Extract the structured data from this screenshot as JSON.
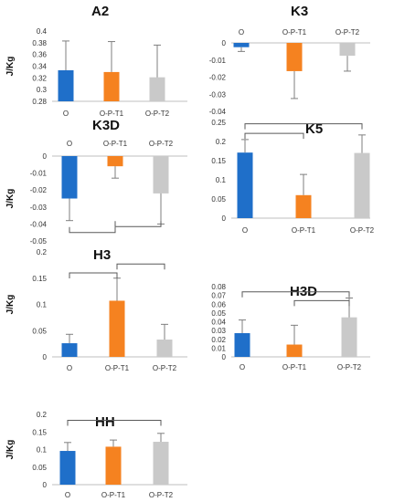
{
  "colors": {
    "O": "#1F6FC9",
    "O-P-T1": "#F58220",
    "O-P-T2": "#C9C9C9",
    "axis": "#BFBFBF",
    "error": "#7F7F7F",
    "bracket": "#595959"
  },
  "chart_data": [
    {
      "id": "A2",
      "type": "bar",
      "title": "A2",
      "ylabel": "J/Kg",
      "categories": [
        "O",
        "O-P-T1",
        "O-P-T2"
      ],
      "values": [
        0.333,
        0.33,
        0.321
      ],
      "errors": [
        0.05,
        0.052,
        0.055
      ],
      "ylim": [
        0.28,
        0.4
      ],
      "yticks": [
        0.28,
        0.3,
        0.32,
        0.34,
        0.36,
        0.38,
        0.4
      ],
      "ytick_labels": [
        "0.28",
        "0.3",
        "0.32",
        "0.34",
        "0.36",
        "0.38",
        "0.4"
      ],
      "brackets": []
    },
    {
      "id": "K3",
      "type": "bar",
      "title": "K3",
      "ylabel": "",
      "categories": [
        "O",
        "O-P-T1",
        "O-P-T2"
      ],
      "values": [
        -0.0025,
        -0.0165,
        -0.0075
      ],
      "errors": [
        0.0025,
        0.016,
        0.009
      ],
      "ylim": [
        -0.04,
        0
      ],
      "yticks": [
        0,
        -0.01,
        -0.02,
        -0.03,
        -0.04
      ],
      "ytick_labels": [
        "0",
        "-0.01",
        "-0.02",
        "-0.03",
        "-0.04"
      ],
      "brackets": []
    },
    {
      "id": "K3D",
      "type": "bar",
      "title": "K3D",
      "ylabel": "J/Kg",
      "categories": [
        "O",
        "O-P-T1",
        "O-P-T2"
      ],
      "values": [
        -0.025,
        -0.006,
        -0.022
      ],
      "errors": [
        0.013,
        0.007,
        0.018
      ],
      "ylim": [
        -0.05,
        0
      ],
      "yticks": [
        0,
        -0.01,
        -0.02,
        -0.03,
        -0.04,
        -0.05
      ],
      "ytick_labels": [
        "0",
        "-0.01",
        "-0.02",
        "-0.03",
        "-0.04",
        "-0.05"
      ],
      "brackets": [
        {
          "from": 0,
          "to": 1,
          "y": -0.045,
          "dir": "below"
        },
        {
          "from": 1,
          "to": 2,
          "y": -0.0415,
          "dir": "below"
        }
      ]
    },
    {
      "id": "K5",
      "type": "bar",
      "title": "K5",
      "ylabel": "",
      "categories": [
        "O",
        "O-P-T1",
        "O-P-T2"
      ],
      "values": [
        0.171,
        0.06,
        0.17
      ],
      "errors": [
        0.034,
        0.054,
        0.047
      ],
      "ylim": [
        0,
        0.25
      ],
      "yticks": [
        0,
        0.05,
        0.1,
        0.15,
        0.2,
        0.25
      ],
      "ytick_labels": [
        "0",
        "0.05",
        "0.1",
        "0.15",
        "0.2",
        "0.25"
      ],
      "brackets": [
        {
          "from": 0,
          "to": 1,
          "y": 0.221,
          "dir": "above"
        },
        {
          "from": 0,
          "to": 2,
          "y": 0.246,
          "dir": "above"
        }
      ]
    },
    {
      "id": "H3",
      "type": "bar",
      "title": "H3",
      "ylabel": "J/Kg",
      "categories": [
        "O",
        "O-P-T1",
        "O-P-T2"
      ],
      "values": [
        0.026,
        0.107,
        0.033
      ],
      "errors": [
        0.017,
        0.043,
        0.029
      ],
      "ylim": [
        0,
        0.2
      ],
      "yticks": [
        0,
        0.05,
        0.1,
        0.15,
        0.2
      ],
      "ytick_labels": [
        "0",
        "0.05",
        "0.1",
        "0.15",
        "0.2"
      ],
      "brackets": [
        {
          "from": 0,
          "to": 1,
          "y": 0.16,
          "dir": "above"
        },
        {
          "from": 1,
          "to": 2,
          "y": 0.177,
          "dir": "above"
        }
      ]
    },
    {
      "id": "H3D",
      "type": "bar",
      "title": "H3D",
      "ylabel": "",
      "categories": [
        "O",
        "O-P-T1",
        "O-P-T2"
      ],
      "values": [
        0.027,
        0.014,
        0.045
      ],
      "errors": [
        0.015,
        0.022,
        0.022
      ],
      "ylim": [
        0,
        0.08
      ],
      "yticks": [
        0,
        0.01,
        0.02,
        0.03,
        0.04,
        0.05,
        0.06,
        0.07,
        0.08
      ],
      "ytick_labels": [
        "0",
        "0.01",
        "0.02",
        "0.03",
        "0.04",
        "0.05",
        "0.06",
        "0.07",
        "0.08"
      ],
      "brackets": [
        {
          "from": 0,
          "to": 2,
          "y": 0.074,
          "dir": "above"
        },
        {
          "from": 1,
          "to": 2,
          "y": 0.064,
          "dir": "above"
        }
      ]
    },
    {
      "id": "HH",
      "type": "bar",
      "title": "HH",
      "ylabel": "J/Kg",
      "categories": [
        "O",
        "O-P-T1",
        "O-P-T2"
      ],
      "values": [
        0.096,
        0.108,
        0.122
      ],
      "errors": [
        0.024,
        0.019,
        0.024
      ],
      "ylim": [
        0,
        0.2
      ],
      "yticks": [
        0,
        0.05,
        0.1,
        0.15,
        0.2
      ],
      "ytick_labels": [
        "0",
        "0.05",
        "0.1",
        "0.15",
        "0.2"
      ],
      "brackets": [
        {
          "from": 0,
          "to": 2,
          "y": 0.183,
          "dir": "above"
        }
      ]
    }
  ]
}
